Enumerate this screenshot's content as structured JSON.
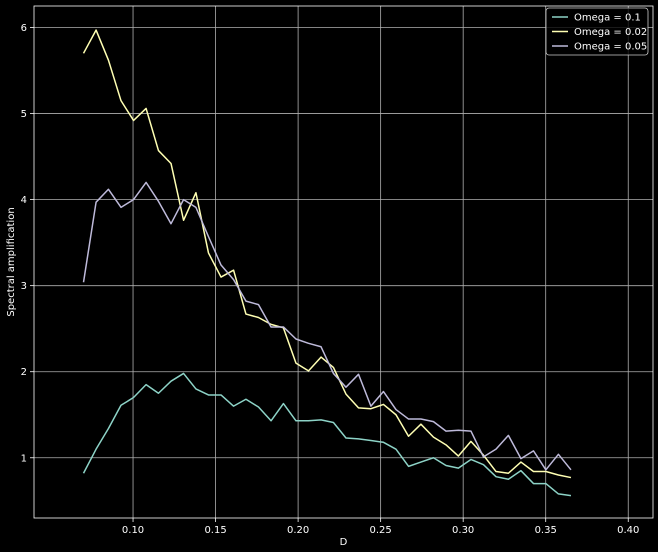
{
  "chart_data": {
    "type": "line",
    "title": "",
    "xlabel": "D",
    "ylabel": "Spectral amplification",
    "xlim": [
      0.04,
      0.415
    ],
    "ylim": [
      0.3,
      6.25
    ],
    "xticks": [
      0.1,
      0.15,
      0.2,
      0.25,
      0.3,
      0.35,
      0.4
    ],
    "xtick_labels": [
      "0.10",
      "0.15",
      "0.20",
      "0.25",
      "0.30",
      "0.35",
      "0.40"
    ],
    "yticks": [
      1,
      2,
      3,
      4,
      5,
      6
    ],
    "ytick_labels": [
      "1",
      "2",
      "3",
      "4",
      "5",
      "6"
    ],
    "grid": true,
    "legend_position": "top-right",
    "background": "#000000",
    "x": [
      0.07,
      0.0776,
      0.0851,
      0.0927,
      0.1003,
      0.1079,
      0.1154,
      0.123,
      0.1306,
      0.1381,
      0.1457,
      0.1533,
      0.1609,
      0.1684,
      0.176,
      0.1836,
      0.1911,
      0.1987,
      0.2063,
      0.2139,
      0.2214,
      0.229,
      0.2366,
      0.2441,
      0.2517,
      0.2593,
      0.2669,
      0.2744,
      0.282,
      0.2896,
      0.2971,
      0.3047,
      0.3123,
      0.3199,
      0.3274,
      0.335,
      0.3426,
      0.3501,
      0.3577,
      0.3653,
      0.3729,
      0.3804,
      0.388,
      0.3956,
      0.4
    ],
    "series": [
      {
        "name": "Omega = 0.1",
        "color": "#8dd3c7",
        "values": [
          0.82,
          1.1,
          1.34,
          1.61,
          1.7,
          1.85,
          1.75,
          1.89,
          1.98,
          1.8,
          1.73,
          1.73,
          1.6,
          1.68,
          1.59,
          1.43,
          1.63,
          1.43,
          1.43,
          1.44,
          1.41,
          1.23,
          1.22,
          1.2,
          1.18,
          1.1,
          0.9,
          0.95,
          1.0,
          0.91,
          0.88,
          0.98,
          0.92,
          0.78,
          0.75,
          0.85,
          0.7,
          0.7,
          0.58,
          0.56,
          null,
          null,
          null,
          null,
          null
        ]
      },
      {
        "name": "Omega = 0.02",
        "color": "#ffffb3",
        "values": [
          5.7,
          5.97,
          5.62,
          5.15,
          4.92,
          5.06,
          4.57,
          4.42,
          3.76,
          4.08,
          3.38,
          3.1,
          3.18,
          2.67,
          2.63,
          2.55,
          2.51,
          2.1,
          2.01,
          2.17,
          2.05,
          1.74,
          1.58,
          1.57,
          1.62,
          1.5,
          1.25,
          1.39,
          1.24,
          1.15,
          1.02,
          1.19,
          1.03,
          0.84,
          0.82,
          0.95,
          0.84,
          0.84,
          0.8,
          0.77,
          null,
          null,
          null,
          null,
          null
        ]
      },
      {
        "name": "Omega = 0.05",
        "color": "#bebada",
        "values": [
          3.04,
          3.97,
          4.12,
          3.91,
          4.0,
          4.2,
          3.98,
          3.72,
          4.0,
          3.91,
          3.57,
          3.24,
          3.07,
          2.82,
          2.78,
          2.52,
          2.52,
          2.38,
          2.33,
          2.29,
          1.98,
          1.82,
          1.97,
          1.6,
          1.77,
          1.56,
          1.45,
          1.45,
          1.42,
          1.31,
          1.32,
          1.31,
          1.01,
          1.1,
          1.26,
          0.99,
          1.08,
          0.86,
          1.04,
          0.86,
          null,
          null,
          null,
          null,
          null
        ]
      }
    ]
  }
}
